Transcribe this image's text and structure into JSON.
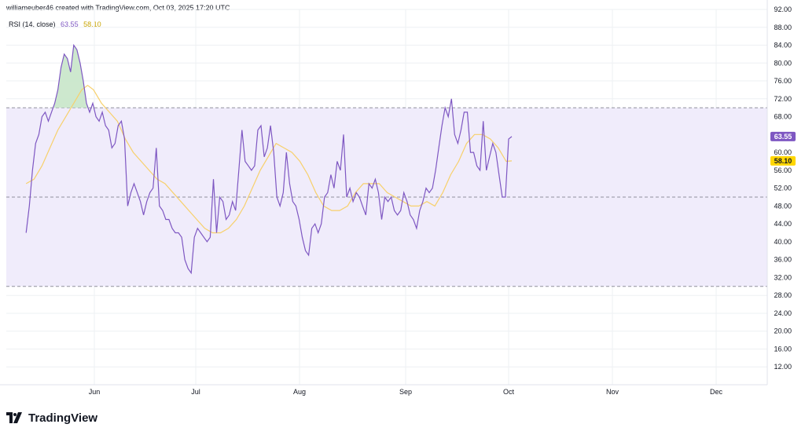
{
  "header": {
    "attribution": "williameuber46 created with TradingView.com, Oct 03, 2025 17:20 UTC"
  },
  "legend": {
    "indicator": "RSI (14, close)",
    "rsi_value": "63.55",
    "ma_value": "58.10"
  },
  "footer": {
    "brand": "TradingView",
    "logo_icon": "tradingview-logo-icon"
  },
  "colors": {
    "rsi": "#7e57c2",
    "ma": "#f7d06b",
    "band_fill": "#f0ecfb",
    "ob_fill": "#c8e6c9",
    "ma_badge": "#ffd600",
    "grid": "#eef0f3"
  },
  "chart_data": {
    "type": "line",
    "ylim": [
      8,
      92
    ],
    "y_ticks": [
      "12.00",
      "16.00",
      "20.00",
      "24.00",
      "28.00",
      "32.00",
      "36.00",
      "40.00",
      "44.00",
      "48.00",
      "52.00",
      "56.00",
      "60.00",
      "64.00",
      "68.00",
      "72.00",
      "76.00",
      "80.00",
      "84.00",
      "88.00",
      "92.00"
    ],
    "x_labels": [
      "Jun",
      "Jul",
      "Aug",
      "Sep",
      "Oct",
      "Nov",
      "Dec"
    ],
    "bands": {
      "upper": 70,
      "middle": 50,
      "lower": 30
    },
    "last_rsi": 63.55,
    "last_ma": 58.1,
    "series": [
      {
        "values": [
          [
            5.0,
            42
          ],
          [
            5.8,
            48
          ],
          [
            6.6,
            56
          ],
          [
            7.4,
            62
          ],
          [
            8.2,
            64
          ],
          [
            9.0,
            68
          ],
          [
            9.8,
            69
          ],
          [
            10.6,
            67
          ],
          [
            11.4,
            69
          ],
          [
            12.2,
            71
          ],
          [
            13.0,
            74
          ],
          [
            13.8,
            79
          ],
          [
            14.6,
            82
          ],
          [
            15.4,
            81
          ],
          [
            16.2,
            78
          ],
          [
            17.0,
            84
          ],
          [
            17.8,
            83
          ],
          [
            18.6,
            80
          ],
          [
            19.4,
            76
          ],
          [
            20.2,
            71
          ],
          [
            21.0,
            69
          ],
          [
            21.8,
            71
          ],
          [
            22.6,
            68
          ],
          [
            23.4,
            67
          ],
          [
            24.2,
            69
          ],
          [
            25.0,
            66
          ],
          [
            25.8,
            65
          ],
          [
            26.6,
            61
          ],
          [
            27.4,
            62
          ],
          [
            28.2,
            66
          ],
          [
            29.0,
            67
          ],
          [
            29.8,
            63
          ],
          [
            30.6,
            48
          ],
          [
            31.4,
            51
          ],
          [
            32.2,
            53
          ],
          [
            33.0,
            51
          ],
          [
            33.8,
            49
          ],
          [
            34.6,
            46
          ],
          [
            35.4,
            49
          ],
          [
            36.2,
            51
          ],
          [
            37.0,
            52
          ],
          [
            37.8,
            61
          ],
          [
            38.6,
            48
          ],
          [
            39.4,
            47
          ],
          [
            40.2,
            45
          ],
          [
            41.0,
            45
          ],
          [
            41.8,
            43
          ],
          [
            42.6,
            42
          ],
          [
            43.4,
            42
          ],
          [
            44.2,
            41
          ],
          [
            45.0,
            36
          ],
          [
            45.8,
            34
          ],
          [
            46.6,
            33
          ],
          [
            47.4,
            41
          ],
          [
            48.2,
            43
          ],
          [
            49.0,
            42
          ],
          [
            49.8,
            41
          ],
          [
            50.6,
            40
          ],
          [
            51.4,
            41
          ],
          [
            52.2,
            54
          ],
          [
            53.0,
            42
          ],
          [
            53.8,
            50
          ],
          [
            54.6,
            49
          ],
          [
            55.4,
            45
          ],
          [
            56.2,
            46
          ],
          [
            57.0,
            49
          ],
          [
            57.8,
            47
          ],
          [
            58.6,
            56
          ],
          [
            59.4,
            65
          ],
          [
            60.2,
            58
          ],
          [
            61.0,
            57
          ],
          [
            61.8,
            56
          ],
          [
            62.6,
            57
          ],
          [
            63.4,
            65
          ],
          [
            64.2,
            66
          ],
          [
            65.0,
            59
          ],
          [
            65.8,
            61
          ],
          [
            66.6,
            66
          ],
          [
            67.4,
            60
          ],
          [
            68.2,
            50
          ],
          [
            69.0,
            48
          ],
          [
            69.8,
            51
          ],
          [
            70.6,
            60
          ],
          [
            71.4,
            53
          ],
          [
            72.2,
            49
          ],
          [
            73.0,
            48
          ],
          [
            73.8,
            45
          ],
          [
            74.6,
            41
          ],
          [
            75.4,
            38
          ],
          [
            76.2,
            37
          ],
          [
            77.0,
            43
          ],
          [
            77.8,
            44
          ],
          [
            78.6,
            42
          ],
          [
            79.4,
            44
          ],
          [
            80.2,
            50
          ],
          [
            81.0,
            51
          ],
          [
            81.8,
            55
          ],
          [
            82.6,
            52
          ],
          [
            83.4,
            58
          ],
          [
            84.2,
            56
          ],
          [
            85.0,
            64
          ],
          [
            85.8,
            50
          ],
          [
            86.6,
            52
          ],
          [
            87.4,
            49
          ],
          [
            88.2,
            51
          ],
          [
            89.0,
            50
          ],
          [
            89.8,
            48
          ],
          [
            90.6,
            46
          ],
          [
            91.4,
            53
          ],
          [
            92.2,
            52
          ],
          [
            93.0,
            54
          ],
          [
            93.8,
            51
          ],
          [
            94.6,
            45
          ],
          [
            95.4,
            50
          ],
          [
            96.2,
            49
          ],
          [
            97.0,
            50
          ],
          [
            97.8,
            47
          ],
          [
            98.6,
            46
          ],
          [
            99.4,
            47
          ],
          [
            100.2,
            51
          ],
          [
            101.0,
            49
          ],
          [
            101.8,
            46
          ],
          [
            102.6,
            45
          ],
          [
            103.4,
            43
          ],
          [
            104.2,
            47
          ],
          [
            105.0,
            49
          ],
          [
            105.8,
            52
          ],
          [
            106.6,
            51
          ],
          [
            107.4,
            52
          ],
          [
            108.2,
            56
          ],
          [
            109.0,
            61
          ],
          [
            109.8,
            66
          ],
          [
            110.6,
            70
          ],
          [
            111.4,
            68
          ],
          [
            112.2,
            72
          ],
          [
            113.0,
            64
          ],
          [
            113.8,
            62
          ],
          [
            114.6,
            65
          ],
          [
            115.4,
            69
          ],
          [
            116.2,
            69
          ],
          [
            117.0,
            60
          ],
          [
            117.8,
            60
          ],
          [
            118.6,
            57
          ],
          [
            119.4,
            56
          ],
          [
            120.2,
            67
          ],
          [
            121.0,
            56
          ],
          [
            121.8,
            59
          ],
          [
            122.6,
            62
          ],
          [
            123.4,
            60
          ],
          [
            124.2,
            55
          ],
          [
            125.0,
            50
          ],
          [
            125.8,
            50
          ],
          [
            126.6,
            63
          ],
          [
            127.4,
            63.55
          ]
        ]
      },
      {
        "values": [
          [
            5.0,
            53
          ],
          [
            7.0,
            54
          ],
          [
            9.0,
            57
          ],
          [
            11.0,
            61
          ],
          [
            13.0,
            65
          ],
          [
            15.0,
            68
          ],
          [
            17.0,
            71
          ],
          [
            19.0,
            74
          ],
          [
            20.5,
            75
          ],
          [
            22.0,
            74
          ],
          [
            24.0,
            71
          ],
          [
            26.0,
            69
          ],
          [
            28.0,
            67
          ],
          [
            30.0,
            63
          ],
          [
            32.0,
            60
          ],
          [
            34.0,
            58
          ],
          [
            36.0,
            56
          ],
          [
            38.0,
            54
          ],
          [
            40.0,
            53
          ],
          [
            42.0,
            51
          ],
          [
            44.0,
            49
          ],
          [
            46.0,
            47
          ],
          [
            48.0,
            45
          ],
          [
            50.0,
            43
          ],
          [
            52.0,
            42
          ],
          [
            54.0,
            42
          ],
          [
            56.0,
            43
          ],
          [
            58.0,
            45
          ],
          [
            60.0,
            48
          ],
          [
            62.0,
            52
          ],
          [
            64.0,
            56
          ],
          [
            66.0,
            59
          ],
          [
            68.0,
            62
          ],
          [
            70.0,
            61
          ],
          [
            72.0,
            60
          ],
          [
            74.0,
            58
          ],
          [
            76.0,
            55
          ],
          [
            78.0,
            51
          ],
          [
            80.0,
            48
          ],
          [
            82.0,
            47
          ],
          [
            84.0,
            47
          ],
          [
            86.0,
            48
          ],
          [
            88.0,
            51
          ],
          [
            90.0,
            53
          ],
          [
            92.0,
            53
          ],
          [
            94.0,
            53
          ],
          [
            96.0,
            51
          ],
          [
            98.0,
            50
          ],
          [
            100.0,
            49
          ],
          [
            102.0,
            48
          ],
          [
            104.0,
            48
          ],
          [
            106.0,
            49
          ],
          [
            108.0,
            48
          ],
          [
            110.0,
            51
          ],
          [
            112.0,
            55
          ],
          [
            114.0,
            58
          ],
          [
            116.0,
            62
          ],
          [
            118.0,
            64
          ],
          [
            120.0,
            64
          ],
          [
            122.0,
            63
          ],
          [
            124.0,
            61
          ],
          [
            126.0,
            58
          ],
          [
            127.4,
            58.1
          ]
        ]
      }
    ]
  }
}
